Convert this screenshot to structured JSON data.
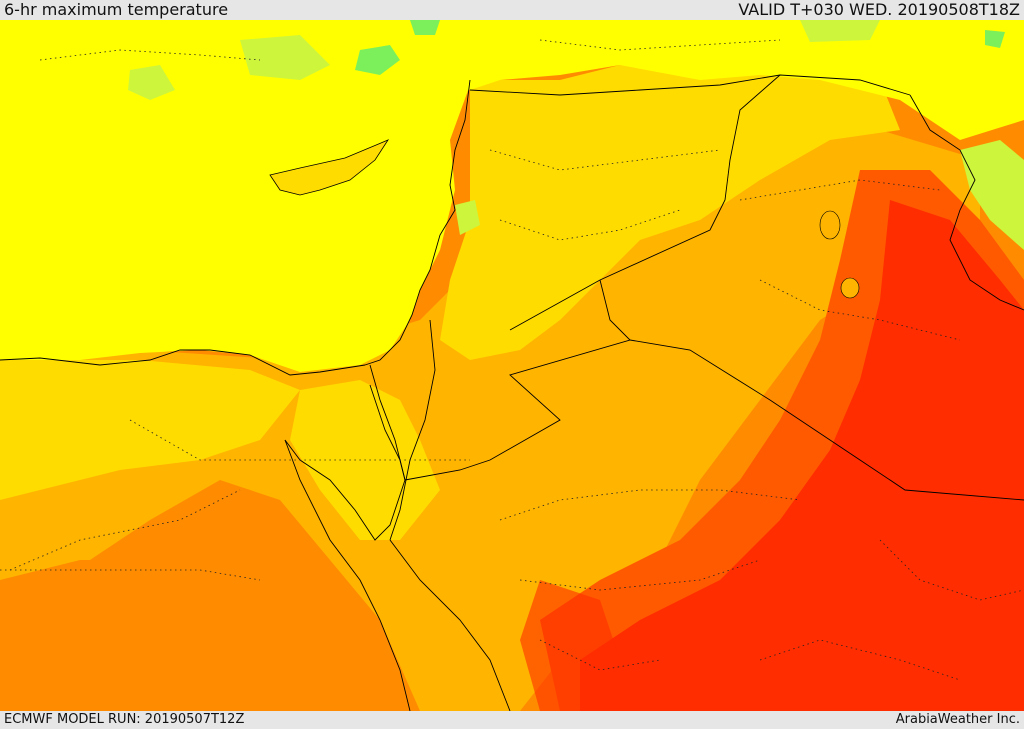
{
  "header": {
    "title": "6-hr maximum temperature",
    "valid_time": "VALID T+030 WED. 20190508T18Z"
  },
  "footer": {
    "model_run": "ECMWF MODEL RUN: 20190507T12Z",
    "credit": "ArabiaWeather Inc."
  },
  "map": {
    "colors": {
      "green": "#7cf05a",
      "yellow_green": "#cdf53c",
      "yellow": "#ffff00",
      "gold": "#ffdc00",
      "light_orange": "#ffb400",
      "orange": "#ff8c00",
      "dark_orange": "#ff5a00",
      "red": "#ff2d00",
      "border": "#000000"
    }
  }
}
